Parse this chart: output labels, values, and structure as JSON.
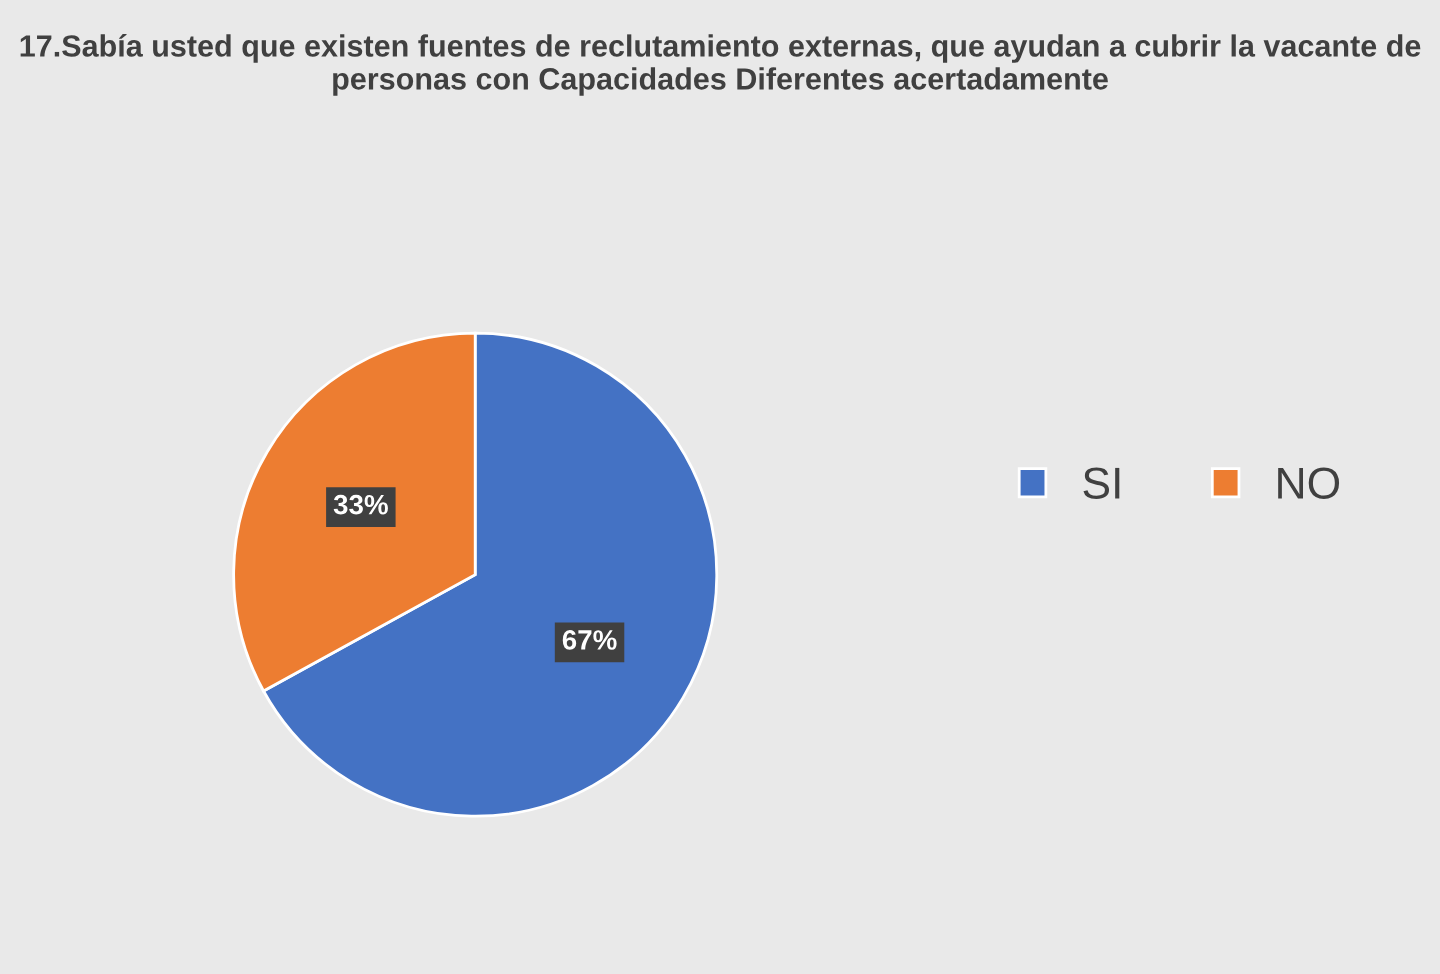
{
  "chart_data": {
    "type": "pie",
    "title": "17.Sabía usted que existen fuentes de reclutamiento externas, que ayudan a cubrir la vacante de personas con Capacidades Diferentes acertadamente",
    "categories": [
      "SI",
      "NO"
    ],
    "values": [
      67,
      33
    ],
    "colors": [
      "#4472c4",
      "#ed7d31"
    ],
    "value_labels": [
      "67%",
      "33%"
    ],
    "legend": "right"
  }
}
